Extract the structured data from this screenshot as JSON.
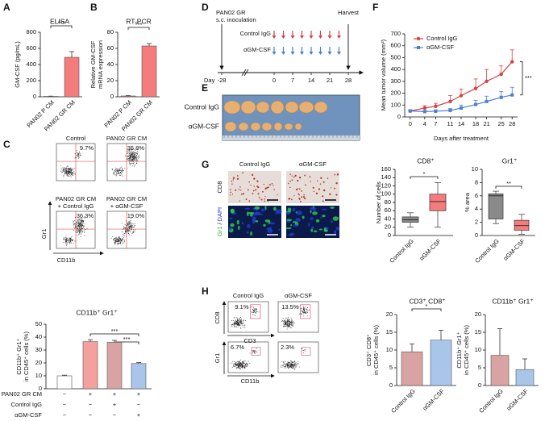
{
  "figure": {
    "letters": [
      "A",
      "B",
      "C",
      "D",
      "E",
      "F",
      "G",
      "H"
    ],
    "flow_c": {
      "titles": [
        [
          "Control"
        ],
        [
          "PAN02 GR CM"
        ],
        [
          "PAN02 GR CM",
          "+ Control IgG"
        ],
        [
          "PAN02 GR CM",
          "+ αGM-CSF"
        ]
      ],
      "percents": [
        "9.7%",
        "35.8%",
        "36.3%",
        "19.0%"
      ],
      "y_label": "Gr1",
      "x_label": "CD11b"
    },
    "timeline": {
      "inoculation": [
        "PAN02 GR",
        "s.c. inoculation"
      ],
      "harvest": "Harvest",
      "groups": [
        "Control IgG",
        "αGM-CSF"
      ],
      "day_label": "Day",
      "days": [
        "-28",
        "0",
        "7",
        "14",
        "21",
        "28"
      ]
    },
    "tumors": {
      "groups": [
        "Control IgG",
        "αGM-CSF"
      ]
    },
    "histology": {
      "columns": [
        "Control IgG",
        "αGM-CSF"
      ],
      "rows": [
        "CD8",
        [
          "Gr1",
          "/",
          "DAPI"
        ]
      ]
    },
    "flow_h": {
      "columns": [
        "Control IgG",
        "αGM-CSF"
      ],
      "percents": [
        "9.1%",
        "13.5%",
        "6.7%",
        "2.3%"
      ],
      "axes": [
        [
          "CD8",
          "CD3"
        ],
        [
          "Gr1",
          "CD11b"
        ]
      ]
    }
  },
  "chart_data": [
    {
      "type": "bar",
      "title": "ELISA",
      "ylabel": "GM-CSF (pg/mL)",
      "categories": [
        "PAN02 P CM",
        "PAN02 GR CM"
      ],
      "values": [
        5,
        490
      ],
      "errors": [
        3,
        70
      ],
      "colors": [
        "#f47c7c",
        "#f47c7c"
      ],
      "ylim": [
        0,
        800
      ],
      "yticks": [
        0,
        200,
        400,
        600,
        800
      ],
      "significance": [
        "***"
      ]
    },
    {
      "type": "bar",
      "title": "RT-PCR",
      "ylabel": [
        "Relative GM-CSF",
        "mRNA expression"
      ],
      "categories": [
        "PAN02 P CM",
        "PAN02 GR CM"
      ],
      "values": [
        1,
        63
      ],
      "errors": [
        0.5,
        3
      ],
      "colors": [
        "#f47c7c",
        "#f47c7c"
      ],
      "ylim": [
        0,
        80
      ],
      "yticks": [
        0,
        20,
        40,
        60,
        80
      ],
      "significance": [
        "***"
      ]
    },
    {
      "type": "bar",
      "title": "CD11b⁺ Gr1⁺",
      "ylabel": [
        "CD11b⁺ Gr1⁺",
        "in CD45⁺ cells (%)"
      ],
      "values": [
        10,
        36.5,
        36,
        19.5
      ],
      "errors": [
        0.5,
        1.5,
        1.5,
        0.8
      ],
      "colors": [
        "#ffffff",
        "#f4a09c",
        "#d9a3a3",
        "#a9c5ea"
      ],
      "ylim": [
        0,
        50
      ],
      "yticks": [
        0,
        10,
        20,
        30,
        40,
        50
      ],
      "significance": [
        "***",
        "***"
      ],
      "table": {
        "rows": [
          {
            "label": "PAN02 GR CM",
            "cells": [
              "−",
              "+",
              "+",
              "+"
            ]
          },
          {
            "label": "Control IgG",
            "cells": [
              "−",
              "−",
              "+",
              "−"
            ]
          },
          {
            "label": "αGM-CSF",
            "cells": [
              "−",
              "−",
              "−",
              "+"
            ]
          }
        ]
      }
    },
    {
      "type": "line",
      "ylabel": "Mean tumor volume (mm³)",
      "xlabel": "Days after treatment",
      "x": [
        0,
        4,
        7,
        11,
        14,
        18,
        21,
        25,
        28
      ],
      "xlim": [
        -1.5,
        29.5
      ],
      "xticks": [
        0,
        4,
        7,
        11,
        14,
        18,
        21,
        25,
        28
      ],
      "ylim": [
        0,
        700
      ],
      "yticks": [
        0,
        100,
        200,
        300,
        400,
        500,
        600,
        700
      ],
      "series": [
        {
          "name": "Control IgG",
          "color": "#d94040",
          "values": [
            50,
            75,
            90,
            130,
            180,
            240,
            300,
            360,
            465
          ],
          "errors": [
            10,
            20,
            25,
            50,
            55,
            80,
            100,
            70,
            100
          ]
        },
        {
          "name": "αGM-CSF",
          "color": "#4a7fd0",
          "values": [
            50,
            45,
            48,
            55,
            75,
            105,
            130,
            165,
            185
          ],
          "errors": [
            10,
            10,
            12,
            15,
            25,
            35,
            45,
            50,
            65
          ]
        }
      ],
      "significance": [
        "***"
      ]
    },
    {
      "type": "box",
      "title": "CD8⁺",
      "ylabel": "Number of cells",
      "categories": [
        "Control IgG",
        "αGM-CSF"
      ],
      "boxes": [
        {
          "min": 20,
          "q1": 32,
          "median": 38,
          "q3": 45,
          "max": 55
        },
        {
          "min": 20,
          "q1": 60,
          "median": 82,
          "q3": 100,
          "max": 128
        }
      ],
      "colors": [
        "#8a8a8a",
        "#f47c7c"
      ],
      "ylim": [
        0,
        160
      ],
      "yticks": [
        0,
        20,
        40,
        60,
        80,
        100,
        120,
        140,
        160
      ],
      "significance": [
        "*"
      ]
    },
    {
      "type": "box",
      "title": "Gr1⁺",
      "ylabel": "% area",
      "categories": [
        "Control IgG",
        "αGM-CSF"
      ],
      "boxes": [
        {
          "min": 1.8,
          "q1": 2.5,
          "median": 6,
          "q3": 6.3,
          "max": 6.7
        },
        {
          "min": 0.2,
          "q1": 0.8,
          "median": 1.5,
          "q3": 2.3,
          "max": 3.2
        }
      ],
      "colors": [
        "#8a8a8a",
        "#f47c7c"
      ],
      "ylim": [
        0,
        10
      ],
      "yticks": [
        0,
        2,
        4,
        6,
        8,
        10
      ],
      "significance": [
        "**"
      ]
    },
    {
      "type": "bar",
      "title": "CD3⁺ CD8⁺",
      "ylabel": [
        "CD3⁺ CD8⁺",
        "in CD45⁺ cells (%)"
      ],
      "categories": [
        "Control IgG",
        "αGM-CSF"
      ],
      "values": [
        9.5,
        12.8
      ],
      "errors": [
        2.2,
        2.8
      ],
      "colors": [
        "#d9a3a3",
        "#a9c5ea"
      ],
      "ylim": [
        0,
        20
      ],
      "yticks": [
        0,
        5,
        10,
        15,
        20
      ],
      "significance": [
        "*"
      ]
    },
    {
      "type": "bar",
      "title": "CD11b⁺ Gr1⁺",
      "ylabel": [
        "CD11b⁺ Gr1⁺",
        "in CD45⁺ cells (%)"
      ],
      "categories": [
        "Control IgG",
        "αGM-CSF"
      ],
      "values": [
        8.5,
        4.5
      ],
      "errors": [
        7.5,
        3
      ],
      "colors": [
        "#d9a3a3",
        "#a9c5ea"
      ],
      "ylim": [
        0,
        20
      ],
      "yticks": [
        0,
        5,
        10,
        15,
        20
      ]
    }
  ]
}
